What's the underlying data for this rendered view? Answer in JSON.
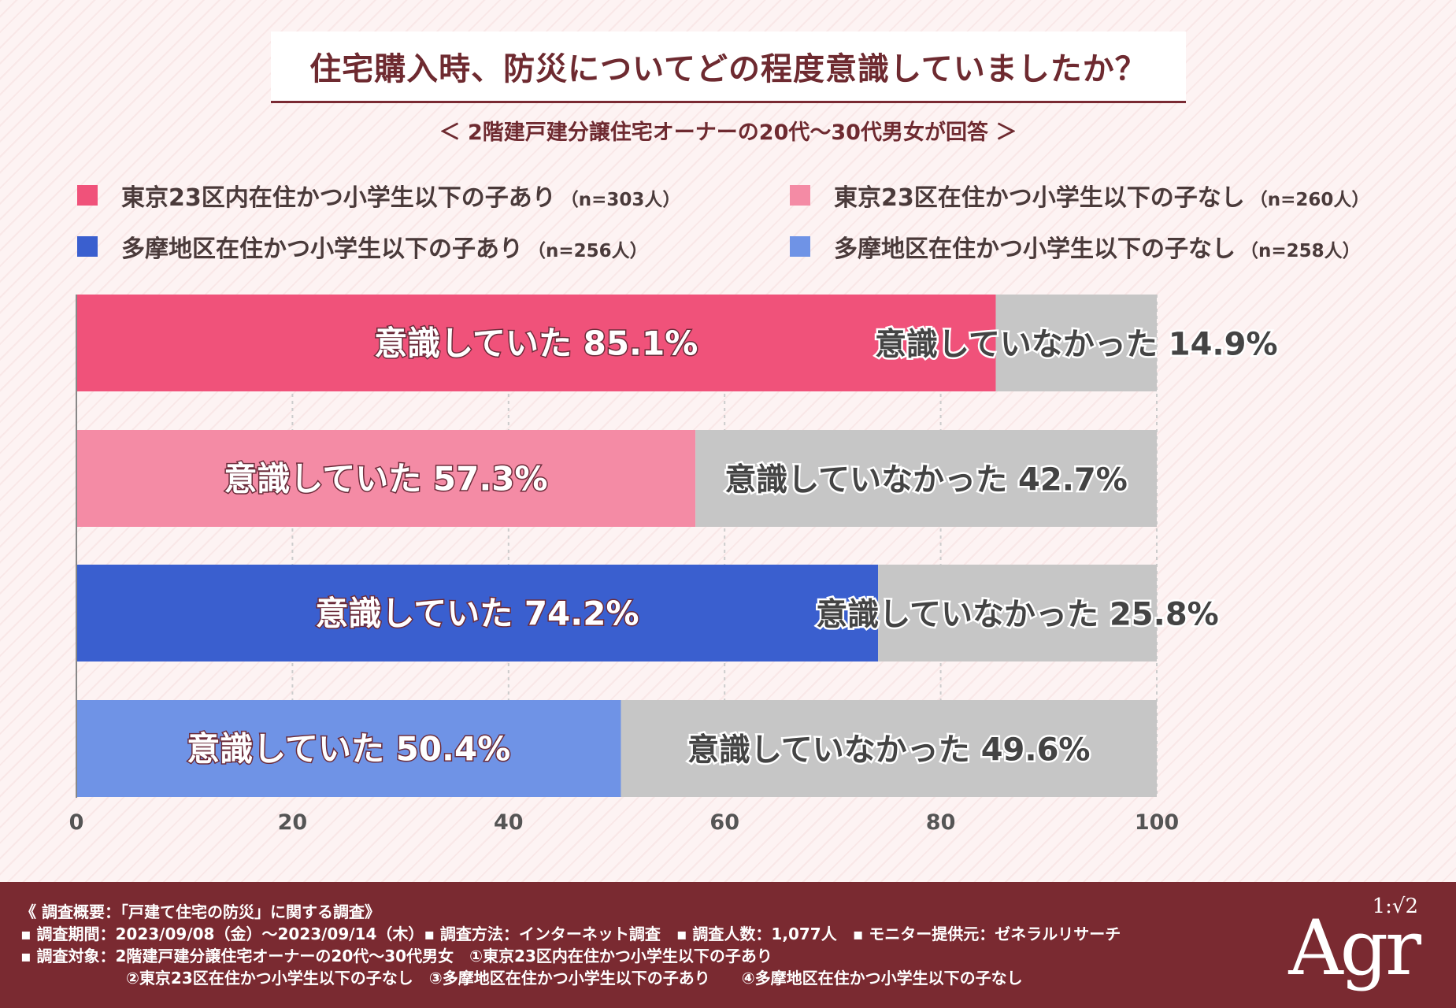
{
  "header": {
    "title": "住宅購入時、防災についてどの程度意識していましたか？",
    "subtitle": "＜ 2階建戸建分譲住宅オーナーの20代～30代男女が回答 ＞"
  },
  "legend": [
    {
      "label": "東京23区内在住かつ小学生以下の子あり",
      "n": "（n=303人）",
      "color": "#f0527a"
    },
    {
      "label": "東京23区在住かつ小学生以下の子なし",
      "n": "（n=260人）",
      "color": "#f48ba5"
    },
    {
      "label": "多摩地区在住かつ小学生以下の子あり",
      "n": "（n=256人）",
      "color": "#3a5fcf"
    },
    {
      "label": "多摩地区在住かつ小学生以下の子なし",
      "n": "（n=258人）",
      "color": "#6f93e6"
    }
  ],
  "chart_data": {
    "type": "bar",
    "orientation": "horizontal",
    "stacked": true,
    "categories": [
      "東京23区内在住かつ小学生以下の子あり",
      "東京23区在住かつ小学生以下の子なし",
      "多摩地区在住かつ小学生以下の子あり",
      "多摩地区在住かつ小学生以下の子なし"
    ],
    "series": [
      {
        "name": "意識していた",
        "values": [
          85.1,
          57.3,
          74.2,
          50.4
        ],
        "colors": [
          "#f0527a",
          "#f48ba5",
          "#3a5fcf",
          "#6f93e6"
        ]
      },
      {
        "name": "意識していなかった",
        "values": [
          14.9,
          42.7,
          25.8,
          49.6
        ],
        "color": "#c6c6c6"
      }
    ],
    "segment_labels": {
      "yes": "意識していた",
      "no": "意識していなかった",
      "yes_values": [
        "85.1%",
        "57.3%",
        "74.2%",
        "50.4%"
      ],
      "no_values": [
        "14.9%",
        "42.7%",
        "25.8%",
        "49.6%"
      ]
    },
    "xlim": [
      0,
      100
    ],
    "xticks": [
      "0",
      "20",
      "40",
      "60",
      "80",
      "100"
    ],
    "grid": true,
    "legend_position": "top"
  },
  "footer": {
    "line1": "《 調査概要：「戸建て住宅の防災」に関する調査》",
    "line2": "▪ 調査期間：2023/09/08（金）～2023/09/14（木）▪ 調査方法：インターネット調査　▪ 調査人数：1,077人　▪ モニター提供元：ゼネラルリサーチ",
    "line3": "▪ 調査対象：2階建戸建分譲住宅オーナーの20代～30代男女　①東京23区内在住かつ小学生以下の子あり",
    "line4": "②東京23区在住かつ小学生以下の子なし　③多摩地区在住かつ小学生以下の子あり　　④多摩地区在住かつ小学生以下の子なし"
  },
  "logo": {
    "text": "Agr",
    "ratio": "1:√2"
  }
}
